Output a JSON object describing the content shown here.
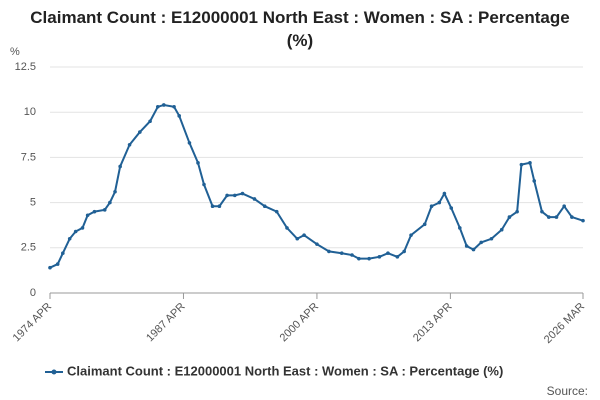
{
  "chart_data": {
    "type": "line",
    "title": "Claimant Count : E12000001 North East : Women : SA : Percentage (%)",
    "y_label": "%",
    "source": "Source:",
    "x": [
      "1974 APR",
      "1975 JAN",
      "1975 JUL",
      "1976 MAR",
      "1976 OCT",
      "1977 JUN",
      "1977 DEC",
      "1978 AUG",
      "1979 AUG",
      "1980 FEB",
      "1980 AUG",
      "1981 FEB",
      "1982 JAN",
      "1983 JAN",
      "1984 JAN",
      "1984 OCT",
      "1985 MAY",
      "1986 MAY",
      "1986 NOV",
      "1987 NOV",
      "1988 SEP",
      "1989 APR",
      "1990 FEB",
      "1990 OCT",
      "1991 JUL",
      "1992 APR",
      "1993 JAN",
      "1994 MAR",
      "1995 MAR",
      "1996 MAY",
      "1997 MAY",
      "1998 MAY",
      "1999 JAN",
      "2000 APR",
      "2001 JUN",
      "2002 SEP",
      "2003 SEP",
      "2004 MAY",
      "2005 MAY",
      "2006 MAY",
      "2007 MAR",
      "2008 FEB",
      "2008 OCT",
      "2009 JUN",
      "2010 OCT",
      "2011 JUN",
      "2012 MAR",
      "2012 SEP",
      "2013 MAY",
      "2014 MAR",
      "2014 NOV",
      "2015 JUL",
      "2016 APR",
      "2017 APR",
      "2018 APR",
      "2019 JAN",
      "2019 OCT",
      "2020 MAR",
      "2021 JAN",
      "2021 JUN",
      "2022 MAR",
      "2022 NOV",
      "2023 AUG",
      "2024 MAY",
      "2025 FEB",
      "2026 MAR"
    ],
    "series": [
      {
        "name": "Claimant Count : E12000001 North East : Women : SA : Percentage (%)",
        "color": "#206095",
        "values": [
          1.4,
          1.6,
          2.2,
          3.0,
          3.4,
          3.6,
          4.3,
          4.5,
          4.6,
          5.0,
          5.6,
          7.0,
          8.2,
          8.9,
          9.5,
          10.3,
          10.4,
          10.3,
          9.8,
          8.3,
          7.2,
          6.0,
          4.8,
          4.8,
          5.4,
          5.4,
          5.5,
          5.2,
          4.8,
          4.5,
          3.6,
          3.0,
          3.2,
          2.7,
          2.3,
          2.2,
          2.1,
          1.9,
          1.9,
          2.0,
          2.2,
          2.0,
          2.3,
          3.2,
          3.8,
          4.8,
          5.0,
          5.5,
          4.7,
          3.6,
          2.6,
          2.4,
          2.8,
          3.0,
          3.5,
          4.2,
          4.5,
          7.1,
          7.2,
          6.2,
          4.5,
          4.2,
          4.2,
          4.8,
          4.2,
          4.0
        ]
      }
    ],
    "xlim": [
      "1974 APR",
      "2026 MAR"
    ],
    "xticks": [
      "1974 APR",
      "1987 APR",
      "2000 APR",
      "2013 APR",
      "2026 MAR"
    ],
    "ylim": [
      0,
      12.5
    ],
    "yticks": [
      0,
      2.5,
      5,
      7.5,
      10,
      12.5
    ],
    "grid": true
  }
}
